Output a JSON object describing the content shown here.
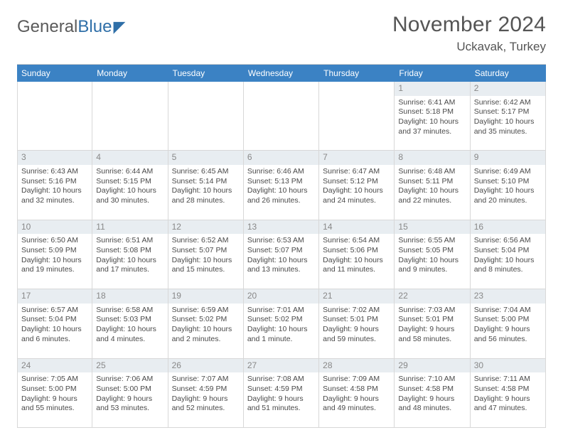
{
  "brand": {
    "grey": "General",
    "blue": "Blue"
  },
  "title": "November 2024",
  "location": "Uckavak, Turkey",
  "colors": {
    "header_bg": "#3b82c4",
    "header_fg": "#ffffff",
    "daynum_bg": "#e8edf1",
    "border": "#d8d8d8",
    "text": "#4a4a4a"
  },
  "dow": [
    "Sunday",
    "Monday",
    "Tuesday",
    "Wednesday",
    "Thursday",
    "Friday",
    "Saturday"
  ],
  "weeks": [
    [
      {
        "n": "",
        "sr": "",
        "ss": "",
        "dl": ""
      },
      {
        "n": "",
        "sr": "",
        "ss": "",
        "dl": ""
      },
      {
        "n": "",
        "sr": "",
        "ss": "",
        "dl": ""
      },
      {
        "n": "",
        "sr": "",
        "ss": "",
        "dl": ""
      },
      {
        "n": "",
        "sr": "",
        "ss": "",
        "dl": ""
      },
      {
        "n": "1",
        "sr": "Sunrise: 6:41 AM",
        "ss": "Sunset: 5:18 PM",
        "dl": "Daylight: 10 hours and 37 minutes."
      },
      {
        "n": "2",
        "sr": "Sunrise: 6:42 AM",
        "ss": "Sunset: 5:17 PM",
        "dl": "Daylight: 10 hours and 35 minutes."
      }
    ],
    [
      {
        "n": "3",
        "sr": "Sunrise: 6:43 AM",
        "ss": "Sunset: 5:16 PM",
        "dl": "Daylight: 10 hours and 32 minutes."
      },
      {
        "n": "4",
        "sr": "Sunrise: 6:44 AM",
        "ss": "Sunset: 5:15 PM",
        "dl": "Daylight: 10 hours and 30 minutes."
      },
      {
        "n": "5",
        "sr": "Sunrise: 6:45 AM",
        "ss": "Sunset: 5:14 PM",
        "dl": "Daylight: 10 hours and 28 minutes."
      },
      {
        "n": "6",
        "sr": "Sunrise: 6:46 AM",
        "ss": "Sunset: 5:13 PM",
        "dl": "Daylight: 10 hours and 26 minutes."
      },
      {
        "n": "7",
        "sr": "Sunrise: 6:47 AM",
        "ss": "Sunset: 5:12 PM",
        "dl": "Daylight: 10 hours and 24 minutes."
      },
      {
        "n": "8",
        "sr": "Sunrise: 6:48 AM",
        "ss": "Sunset: 5:11 PM",
        "dl": "Daylight: 10 hours and 22 minutes."
      },
      {
        "n": "9",
        "sr": "Sunrise: 6:49 AM",
        "ss": "Sunset: 5:10 PM",
        "dl": "Daylight: 10 hours and 20 minutes."
      }
    ],
    [
      {
        "n": "10",
        "sr": "Sunrise: 6:50 AM",
        "ss": "Sunset: 5:09 PM",
        "dl": "Daylight: 10 hours and 19 minutes."
      },
      {
        "n": "11",
        "sr": "Sunrise: 6:51 AM",
        "ss": "Sunset: 5:08 PM",
        "dl": "Daylight: 10 hours and 17 minutes."
      },
      {
        "n": "12",
        "sr": "Sunrise: 6:52 AM",
        "ss": "Sunset: 5:07 PM",
        "dl": "Daylight: 10 hours and 15 minutes."
      },
      {
        "n": "13",
        "sr": "Sunrise: 6:53 AM",
        "ss": "Sunset: 5:07 PM",
        "dl": "Daylight: 10 hours and 13 minutes."
      },
      {
        "n": "14",
        "sr": "Sunrise: 6:54 AM",
        "ss": "Sunset: 5:06 PM",
        "dl": "Daylight: 10 hours and 11 minutes."
      },
      {
        "n": "15",
        "sr": "Sunrise: 6:55 AM",
        "ss": "Sunset: 5:05 PM",
        "dl": "Daylight: 10 hours and 9 minutes."
      },
      {
        "n": "16",
        "sr": "Sunrise: 6:56 AM",
        "ss": "Sunset: 5:04 PM",
        "dl": "Daylight: 10 hours and 8 minutes."
      }
    ],
    [
      {
        "n": "17",
        "sr": "Sunrise: 6:57 AM",
        "ss": "Sunset: 5:04 PM",
        "dl": "Daylight: 10 hours and 6 minutes."
      },
      {
        "n": "18",
        "sr": "Sunrise: 6:58 AM",
        "ss": "Sunset: 5:03 PM",
        "dl": "Daylight: 10 hours and 4 minutes."
      },
      {
        "n": "19",
        "sr": "Sunrise: 6:59 AM",
        "ss": "Sunset: 5:02 PM",
        "dl": "Daylight: 10 hours and 2 minutes."
      },
      {
        "n": "20",
        "sr": "Sunrise: 7:01 AM",
        "ss": "Sunset: 5:02 PM",
        "dl": "Daylight: 10 hours and 1 minute."
      },
      {
        "n": "21",
        "sr": "Sunrise: 7:02 AM",
        "ss": "Sunset: 5:01 PM",
        "dl": "Daylight: 9 hours and 59 minutes."
      },
      {
        "n": "22",
        "sr": "Sunrise: 7:03 AM",
        "ss": "Sunset: 5:01 PM",
        "dl": "Daylight: 9 hours and 58 minutes."
      },
      {
        "n": "23",
        "sr": "Sunrise: 7:04 AM",
        "ss": "Sunset: 5:00 PM",
        "dl": "Daylight: 9 hours and 56 minutes."
      }
    ],
    [
      {
        "n": "24",
        "sr": "Sunrise: 7:05 AM",
        "ss": "Sunset: 5:00 PM",
        "dl": "Daylight: 9 hours and 55 minutes."
      },
      {
        "n": "25",
        "sr": "Sunrise: 7:06 AM",
        "ss": "Sunset: 5:00 PM",
        "dl": "Daylight: 9 hours and 53 minutes."
      },
      {
        "n": "26",
        "sr": "Sunrise: 7:07 AM",
        "ss": "Sunset: 4:59 PM",
        "dl": "Daylight: 9 hours and 52 minutes."
      },
      {
        "n": "27",
        "sr": "Sunrise: 7:08 AM",
        "ss": "Sunset: 4:59 PM",
        "dl": "Daylight: 9 hours and 51 minutes."
      },
      {
        "n": "28",
        "sr": "Sunrise: 7:09 AM",
        "ss": "Sunset: 4:58 PM",
        "dl": "Daylight: 9 hours and 49 minutes."
      },
      {
        "n": "29",
        "sr": "Sunrise: 7:10 AM",
        "ss": "Sunset: 4:58 PM",
        "dl": "Daylight: 9 hours and 48 minutes."
      },
      {
        "n": "30",
        "sr": "Sunrise: 7:11 AM",
        "ss": "Sunset: 4:58 PM",
        "dl": "Daylight: 9 hours and 47 minutes."
      }
    ]
  ]
}
